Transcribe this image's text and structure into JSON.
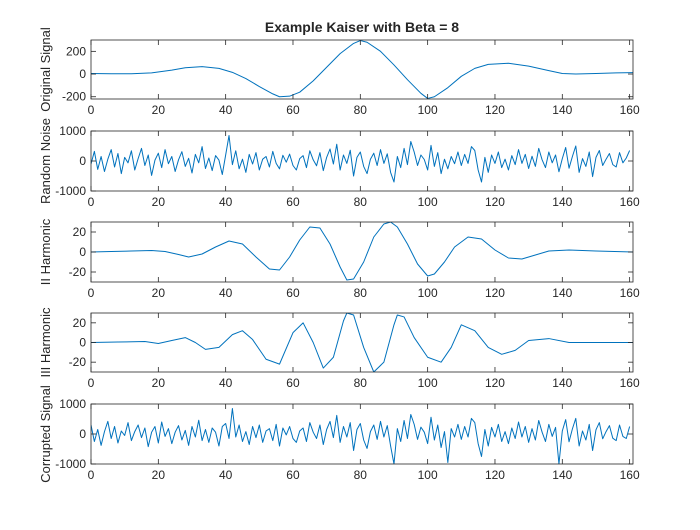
{
  "figure": {
    "title": "Example Kaiser with Beta = 8",
    "line_color": "#0072bd",
    "axes_color": "#262626",
    "background": "#ffffff"
  },
  "chart_data": [
    {
      "type": "line",
      "ylabel": "Original Signal",
      "xlim": [
        0,
        161
      ],
      "ylim": [
        -220,
        300
      ],
      "xticks": [
        0,
        20,
        40,
        60,
        80,
        100,
        120,
        140,
        160
      ],
      "yticks": [
        -200,
        0,
        200
      ],
      "grid": false,
      "series": [
        {
          "x": [
            0,
            6,
            12,
            18,
            24,
            28,
            33,
            38,
            42,
            46,
            50,
            54,
            56,
            59,
            62,
            66,
            70,
            74,
            78,
            80,
            82,
            86,
            90,
            94,
            98,
            100,
            102,
            106,
            110,
            114,
            118,
            124,
            130,
            136,
            140,
            144,
            150,
            156,
            161
          ],
          "y": [
            5,
            3,
            2,
            10,
            35,
            55,
            65,
            50,
            15,
            -40,
            -110,
            -175,
            -200,
            -195,
            -160,
            -60,
            60,
            180,
            270,
            295,
            280,
            200,
            80,
            -50,
            -170,
            -215,
            -200,
            -120,
            -20,
            50,
            85,
            95,
            70,
            30,
            5,
            0,
            5,
            10,
            12
          ]
        }
      ]
    },
    {
      "type": "line",
      "ylabel": "Random Noise",
      "xlim": [
        0,
        161
      ],
      "ylim": [
        -1000,
        1000
      ],
      "xticks": [
        0,
        20,
        40,
        60,
        80,
        100,
        120,
        140,
        160
      ],
      "yticks": [
        -1000,
        0,
        1000
      ],
      "grid": false,
      "series": [
        {
          "x": [
            0,
            1,
            2,
            3,
            4,
            5,
            6,
            7,
            8,
            9,
            10,
            11,
            12,
            13,
            14,
            15,
            16,
            17,
            18,
            19,
            20,
            21,
            22,
            23,
            24,
            25,
            26,
            27,
            28,
            29,
            30,
            31,
            32,
            33,
            34,
            35,
            36,
            37,
            38,
            39,
            40,
            41,
            42,
            43,
            44,
            45,
            46,
            47,
            48,
            49,
            50,
            51,
            52,
            53,
            54,
            55,
            56,
            57,
            58,
            59,
            60,
            61,
            62,
            63,
            64,
            65,
            66,
            67,
            68,
            69,
            70,
            71,
            72,
            73,
            74,
            75,
            76,
            77,
            78,
            79,
            80,
            81,
            82,
            83,
            84,
            85,
            86,
            87,
            88,
            89,
            90,
            91,
            92,
            93,
            94,
            95,
            96,
            97,
            98,
            99,
            100,
            101,
            102,
            103,
            104,
            105,
            106,
            107,
            108,
            109,
            110,
            111,
            112,
            113,
            114,
            115,
            116,
            117,
            118,
            119,
            120,
            121,
            122,
            123,
            124,
            125,
            126,
            127,
            128,
            129,
            130,
            131,
            132,
            133,
            134,
            135,
            136,
            137,
            138,
            139,
            140,
            141,
            142,
            143,
            144,
            145,
            146,
            147,
            148,
            149,
            150,
            151,
            152,
            153,
            154,
            155,
            156,
            157,
            158,
            159,
            160
          ],
          "y": [
            -100,
            320,
            -280,
            150,
            -350,
            60,
            380,
            -200,
            250,
            -420,
            120,
            -60,
            340,
            -300,
            80,
            420,
            -150,
            200,
            -480,
            30,
            260,
            -220,
            380,
            -90,
            150,
            -350,
            40,
            310,
            -180,
            90,
            -400,
            220,
            -60,
            480,
            -250,
            100,
            -320,
            180,
            30,
            -450,
            200,
            850,
            -120,
            340,
            -260,
            60,
            -380,
            220,
            -100,
            280,
            -300,
            60,
            150,
            -200,
            320,
            -80,
            -260,
            190,
            -40,
            230,
            -150,
            -300,
            80,
            180,
            -220,
            340,
            40,
            -160,
            280,
            -320,
            120,
            400,
            -100,
            560,
            -300,
            200,
            -80,
            360,
            -500,
            120,
            300,
            -180,
            -420,
            60,
            260,
            -150,
            380,
            -80,
            240,
            -380,
            -700,
            150,
            -220,
            420,
            -120,
            650,
            300,
            -150,
            200,
            50,
            -300,
            520,
            -180,
            280,
            -420,
            60,
            -260,
            150,
            -90,
            300,
            -150,
            220,
            -80,
            480,
            350,
            -300,
            -700,
            120,
            -380,
            200,
            -80,
            300,
            -220,
            60,
            -300,
            180,
            -120,
            380,
            -80,
            220,
            -250,
            160,
            -180,
            420,
            40,
            -220,
            300,
            -60,
            200,
            -360,
            80,
            450,
            -240,
            150,
            500,
            -380,
            80,
            -180,
            300,
            -520,
            120,
            350,
            -150,
            60,
            250,
            -120,
            -200,
            280,
            -60,
            100,
            350
          ]
        }
      ]
    },
    {
      "type": "line",
      "ylabel": "II Harmonic",
      "xlim": [
        0,
        161
      ],
      "ylim": [
        -30,
        30
      ],
      "xticks": [
        0,
        20,
        40,
        60,
        80,
        100,
        120,
        140,
        160
      ],
      "yticks": [
        -20,
        0,
        20
      ],
      "grid": false,
      "series": [
        {
          "x": [
            0,
            6,
            12,
            18,
            22,
            26,
            29,
            33,
            37,
            41,
            45,
            49,
            53,
            56,
            59,
            62,
            65,
            68,
            71,
            74,
            76,
            78,
            81,
            84,
            87,
            89,
            91,
            94,
            97,
            100,
            102,
            105,
            108,
            112,
            116,
            120,
            124,
            128,
            132,
            136,
            142,
            150,
            161
          ],
          "y": [
            0,
            0.5,
            1,
            1.5,
            0.5,
            -2.5,
            -5,
            -2,
            5,
            11,
            8,
            -5,
            -17,
            -18,
            -5,
            12,
            25,
            24,
            8,
            -15,
            -28,
            -27,
            -10,
            15,
            28,
            30,
            25,
            8,
            -12,
            -24,
            -22,
            -10,
            5,
            15,
            13,
            2,
            -6,
            -7,
            -3,
            1,
            2,
            1,
            0
          ]
        }
      ]
    },
    {
      "type": "line",
      "ylabel": "III Harmonic",
      "xlim": [
        0,
        161
      ],
      "ylim": [
        -30,
        30
      ],
      "xticks": [
        0,
        20,
        40,
        60,
        80,
        100,
        120,
        140,
        160
      ],
      "yticks": [
        -20,
        0,
        20
      ],
      "grid": false,
      "series": [
        {
          "x": [
            0,
            8,
            16,
            20,
            24,
            28,
            31,
            34,
            38,
            42,
            45,
            48,
            52,
            56,
            60,
            63,
            66,
            69,
            72,
            75,
            76,
            78,
            81,
            84,
            87,
            90,
            91,
            93,
            96,
            100,
            104,
            107,
            110,
            114,
            118,
            122,
            126,
            130,
            136,
            142,
            150,
            161
          ],
          "y": [
            0,
            0.5,
            1,
            -1,
            2,
            5,
            0,
            -7,
            -5,
            8,
            12,
            3,
            -17,
            -22,
            10,
            20,
            0,
            -26,
            -15,
            22,
            30,
            28,
            -5,
            -30,
            -20,
            18,
            28,
            26,
            5,
            -15,
            -20,
            -5,
            18,
            12,
            -5,
            -12,
            -8,
            2,
            4,
            0,
            0,
            0
          ]
        }
      ]
    },
    {
      "type": "line",
      "ylabel": "Corrupted Signal",
      "xlim": [
        0,
        161
      ],
      "ylim": [
        -1000,
        1000
      ],
      "xticks": [
        0,
        20,
        40,
        60,
        80,
        100,
        120,
        140,
        160
      ],
      "yticks": [
        -1000,
        0,
        1000
      ],
      "grid": false,
      "series": [
        {
          "x": [
            0,
            1,
            2,
            3,
            4,
            5,
            6,
            7,
            8,
            9,
            10,
            11,
            12,
            13,
            14,
            15,
            16,
            17,
            18,
            19,
            20,
            21,
            22,
            23,
            24,
            25,
            26,
            27,
            28,
            29,
            30,
            31,
            32,
            33,
            34,
            35,
            36,
            37,
            38,
            39,
            40,
            41,
            42,
            43,
            44,
            45,
            46,
            47,
            48,
            49,
            50,
            51,
            52,
            53,
            54,
            55,
            56,
            57,
            58,
            59,
            60,
            61,
            62,
            63,
            64,
            65,
            66,
            67,
            68,
            69,
            70,
            71,
            72,
            73,
            74,
            75,
            76,
            77,
            78,
            79,
            80,
            81,
            82,
            83,
            84,
            85,
            86,
            87,
            88,
            89,
            90,
            91,
            92,
            93,
            94,
            95,
            96,
            97,
            98,
            99,
            100,
            101,
            102,
            103,
            104,
            105,
            106,
            107,
            108,
            109,
            110,
            111,
            112,
            113,
            114,
            115,
            116,
            117,
            118,
            119,
            120,
            121,
            122,
            123,
            124,
            125,
            126,
            127,
            128,
            129,
            130,
            131,
            132,
            133,
            134,
            135,
            136,
            137,
            138,
            139,
            140,
            141,
            142,
            143,
            144,
            145,
            146,
            147,
            148,
            149,
            150,
            151,
            152,
            153,
            154,
            155,
            156,
            157,
            158,
            159,
            160
          ],
          "y": [
            300,
            -250,
            150,
            -380,
            80,
            420,
            -150,
            250,
            -300,
            100,
            -50,
            380,
            -220,
            80,
            300,
            -120,
            200,
            -420,
            60,
            250,
            -300,
            400,
            -80,
            180,
            -320,
            60,
            280,
            -200,
            120,
            -380,
            250,
            -100,
            460,
            -220,
            150,
            -280,
            200,
            60,
            -400,
            250,
            350,
            -150,
            850,
            -100,
            300,
            -250,
            80,
            -350,
            250,
            -120,
            300,
            -280,
            100,
            180,
            -220,
            320,
            -400,
            200,
            -30,
            250,
            -150,
            -280,
            100,
            200,
            -250,
            380,
            60,
            -150,
            300,
            -350,
            150,
            420,
            -120,
            620,
            -280,
            250,
            -100,
            380,
            -550,
            150,
            350,
            -200,
            -480,
            80,
            300,
            -180,
            420,
            -100,
            280,
            -400,
            -1000,
            180,
            -250,
            450,
            -150,
            650,
            320,
            -180,
            230,
            60,
            -320,
            560,
            -200,
            300,
            -450,
            80,
            -950,
            180,
            -100,
            320,
            -180,
            250,
            -100,
            520,
            380,
            -320,
            -750,
            150,
            -400,
            220,
            -100,
            320,
            -250,
            80,
            -320,
            200,
            -150,
            400,
            -100,
            250,
            -280,
            180,
            -200,
            450,
            60,
            -250,
            320,
            -80,
            220,
            -1000,
            100,
            480,
            -260,
            170,
            520,
            -400,
            100,
            -200,
            320,
            -550,
            140,
            380,
            -160,
            80,
            280,
            -140,
            -220,
            300,
            -80,
            -150,
            250
          ]
        }
      ]
    }
  ]
}
